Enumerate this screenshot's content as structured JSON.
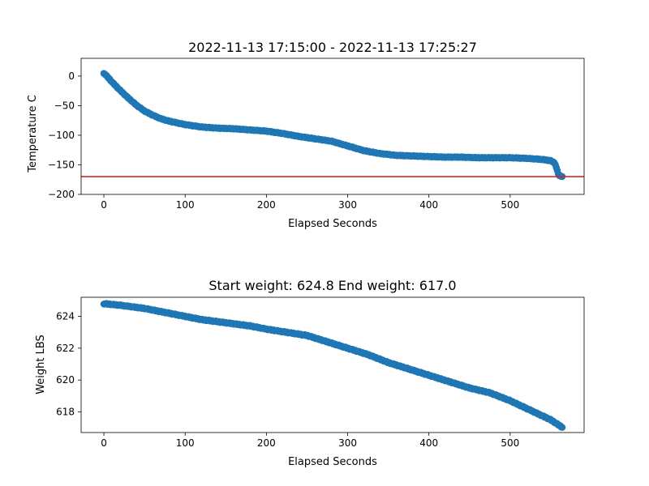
{
  "colors": {
    "series": "#1f77b4",
    "reference_line": "#d62728",
    "axes": "#000000"
  },
  "chart_data": [
    {
      "type": "scatter",
      "title": "2022-11-13 17:15:00 - 2022-11-13 17:25:27",
      "xlabel": "Elapsed Seconds",
      "ylabel": "Temperature C",
      "xlim": [
        -28,
        591
      ],
      "ylim": [
        -200,
        30
      ],
      "xticks": [
        0,
        100,
        200,
        300,
        400,
        500
      ],
      "yticks": [
        0,
        -50,
        -100,
        -150,
        -200
      ],
      "grid": false,
      "reference_line": {
        "y": -170,
        "color": "#d62728"
      },
      "keypoints": {
        "x": [
          0,
          5,
          10,
          20,
          30,
          40,
          50,
          60,
          70,
          80,
          90,
          100,
          120,
          140,
          160,
          180,
          200,
          220,
          240,
          260,
          280,
          300,
          320,
          340,
          360,
          380,
          400,
          420,
          440,
          460,
          480,
          500,
          520,
          540,
          550,
          555,
          558,
          560,
          565
        ],
        "y": [
          5,
          -2,
          -10,
          -24,
          -37,
          -49,
          -59,
          -66,
          -72,
          -76,
          -79,
          -82,
          -86,
          -88,
          -89,
          -91,
          -93,
          -97,
          -102,
          -106,
          -110,
          -118,
          -126,
          -131,
          -134,
          -135,
          -136,
          -137,
          -137,
          -138,
          -138,
          -138,
          -139,
          -141,
          -143,
          -147,
          -160,
          -168,
          -170
        ]
      }
    },
    {
      "type": "scatter",
      "title": "Start weight: 624.8 End weight: 617.0",
      "xlabel": "Elapsed Seconds",
      "ylabel": "Weight LBS",
      "xlim": [
        -28,
        591
      ],
      "ylim": [
        616.7,
        625.2
      ],
      "xticks": [
        0,
        100,
        200,
        300,
        400,
        500
      ],
      "yticks": [
        618,
        620,
        622,
        624
      ],
      "grid": false,
      "keypoints": {
        "x": [
          0,
          20,
          50,
          80,
          100,
          120,
          150,
          180,
          200,
          225,
          250,
          275,
          300,
          325,
          350,
          375,
          400,
          425,
          450,
          475,
          500,
          525,
          550,
          565
        ],
        "y": [
          624.8,
          624.7,
          624.5,
          624.2,
          624.0,
          623.8,
          623.6,
          623.4,
          623.2,
          623.0,
          622.8,
          622.4,
          622.0,
          621.6,
          621.1,
          620.7,
          620.3,
          619.9,
          619.5,
          619.2,
          618.7,
          618.1,
          617.5,
          617.0
        ]
      }
    }
  ]
}
